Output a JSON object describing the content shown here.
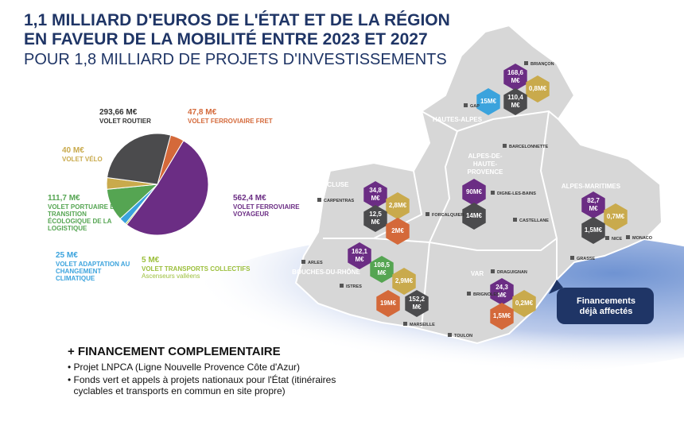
{
  "header": {
    "title_line1": "1,1 MILLIARD D'EUROS DE L'ÉTAT ET DE LA RÉGION",
    "title_line2": "EN FAVEUR DE LA MOBILITÉ ENTRE 2023 ET 2027",
    "subtitle": "POUR 1,8 MILLIARD DE PROJETS D'INVESTISSEMENTS"
  },
  "chart_data": {
    "type": "pie",
    "categories": [
      "VOLET FERROVIAIRE FRET",
      "VOLET FERROVIAIRE VOYAGEUR",
      "VOLET TRANSPORTS COLLECTIFS",
      "VOLET ADAPTATION AU CHANGEMENT CLIMATIQUE",
      "VOLET PORTUAIRE ET TRANSITION ÉCOLOGIQUE DE LA LOGISTIQUE",
      "VOLET VÉLO",
      "VOLET ROUTIER"
    ],
    "values": [
      47.8,
      562.4,
      5,
      25,
      111.7,
      40,
      293.66
    ],
    "value_labels": [
      "47,8 M€",
      "562,4 M€",
      "5 M€",
      "25 M€",
      "111,7 M€",
      "40 M€",
      "293,66 M€"
    ],
    "colors": [
      "#d4693a",
      "#6b2d84",
      "#9cbf3c",
      "#3ba3dd",
      "#55a552",
      "#c9aa4c",
      "#4b4b4d"
    ],
    "annotations": [
      "Ascenseurs valléens"
    ]
  },
  "map": {
    "departments": [
      {
        "name": "HAUTES-ALPES",
        "hexes": [
          {
            "lines": [
              "168,6",
              "M€"
            ],
            "color": "#6b2d84"
          },
          {
            "lines": [
              "0,8M€"
            ],
            "color": "#c9aa4c"
          },
          {
            "lines": [
              "15M€"
            ],
            "color": "#3ba3dd"
          },
          {
            "lines": [
              "110,4",
              "M€"
            ],
            "color": "#4b4b4d"
          }
        ]
      },
      {
        "name": "ALPES-DE-HAUTE-PROVENCE",
        "hexes": [
          {
            "lines": [
              "90M€"
            ],
            "color": "#6b2d84"
          },
          {
            "lines": [
              "14M€"
            ],
            "color": "#4b4b4d"
          }
        ]
      },
      {
        "name": "VAUCLUSE",
        "hexes": [
          {
            "lines": [
              "34,8",
              "M€"
            ],
            "color": "#6b2d84"
          },
          {
            "lines": [
              "2,8M€"
            ],
            "color": "#c9aa4c"
          },
          {
            "lines": [
              "12,5",
              "M€"
            ],
            "color": "#4b4b4d"
          },
          {
            "lines": [
              "2M€"
            ],
            "color": "#d4693a"
          }
        ]
      },
      {
        "name": "ALPES-MARITIMES",
        "hexes": [
          {
            "lines": [
              "82,7",
              "M€"
            ],
            "color": "#6b2d84"
          },
          {
            "lines": [
              "0,7M€"
            ],
            "color": "#c9aa4c"
          },
          {
            "lines": [
              "1,5M€"
            ],
            "color": "#4b4b4d"
          }
        ]
      },
      {
        "name": "BOUCHES-DU-RHÔNE",
        "hexes": [
          {
            "lines": [
              "162,1",
              "M€"
            ],
            "color": "#6b2d84"
          },
          {
            "lines": [
              "108,5",
              "M€"
            ],
            "color": "#55a552"
          },
          {
            "lines": [
              "2,9M€"
            ],
            "color": "#c9aa4c"
          },
          {
            "lines": [
              "19M€"
            ],
            "color": "#d4693a"
          },
          {
            "lines": [
              "152,2",
              "M€"
            ],
            "color": "#4b4b4d"
          }
        ]
      },
      {
        "name": "VAR",
        "hexes": [
          {
            "lines": [
              "24,3",
              "M€"
            ],
            "color": "#6b2d84"
          },
          {
            "lines": [
              "0,2M€"
            ],
            "color": "#c9aa4c"
          },
          {
            "lines": [
              "1,5M€"
            ],
            "color": "#d4693a"
          }
        ]
      }
    ],
    "cities": [
      "BRIANÇON",
      "GAP",
      "BARCELONNETTE",
      "DIGNE-LES-BAINS",
      "CARPENTRAS",
      "FORCALQUIER",
      "CASTELLANE",
      "NICE",
      "MONACO",
      "GRASSE",
      "ARLES",
      "ISTRES",
      "DRAGUIGNAN",
      "BRIGNOLES",
      "MARSEILLE",
      "TOULON"
    ],
    "callout": "Financements déjà affectés"
  },
  "complement": {
    "title": "+ FINANCEMENT COMPLEMENTAIRE",
    "items": [
      "Projet LNPCA (Ligne Nouvelle Provence Côte d'Azur)",
      "Fonds vert et appels à projets nationaux pour l'État (itinéraires cyclables et transports en commun en site propre)"
    ]
  }
}
